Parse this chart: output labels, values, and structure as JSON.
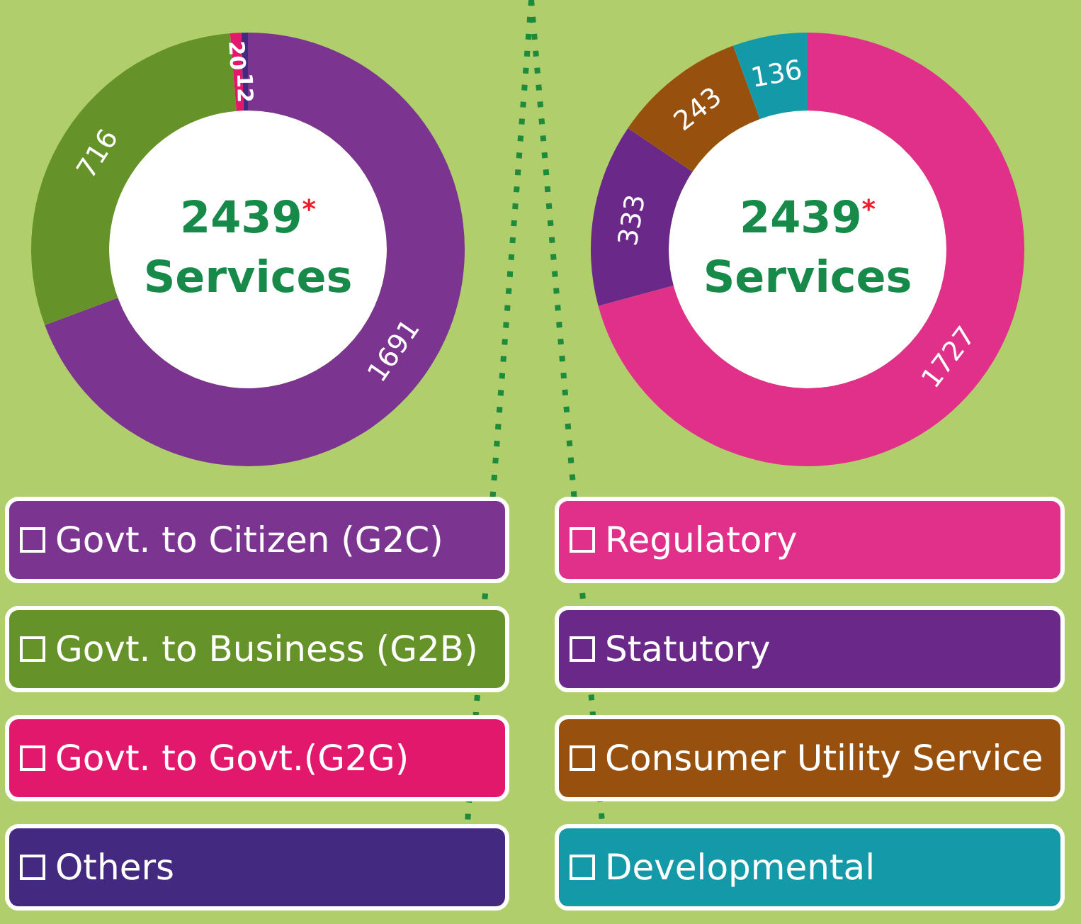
{
  "chart_data": [
    {
      "type": "donut",
      "categories": [
        "Govt. to Citizen (G2C)",
        "Govt. to Business (G2B)",
        "Govt. to Govt.(G2G)",
        "Others"
      ],
      "values": [
        1691,
        716,
        20,
        12
      ],
      "colors": [
        "#7b3590",
        "#66922a",
        "#e2186c",
        "#432a80"
      ],
      "data_labels": true,
      "legend": "bottom",
      "annotations": [
        "2439$^{*}$",
        "Services"
      ]
    },
    {
      "type": "donut",
      "categories": [
        "Regulatory",
        "Statutory",
        "Consumer Utility Service",
        "Developmental"
      ],
      "values": [
        1727,
        333,
        243,
        136
      ],
      "colors": [
        "#e0308a",
        "#6a2888",
        "#98500e",
        "#1499a8"
      ],
      "data_labels": true,
      "legend": "bottom",
      "annotations": [
        "2439$^{*}$",
        "Services"
      ]
    }
  ]
}
